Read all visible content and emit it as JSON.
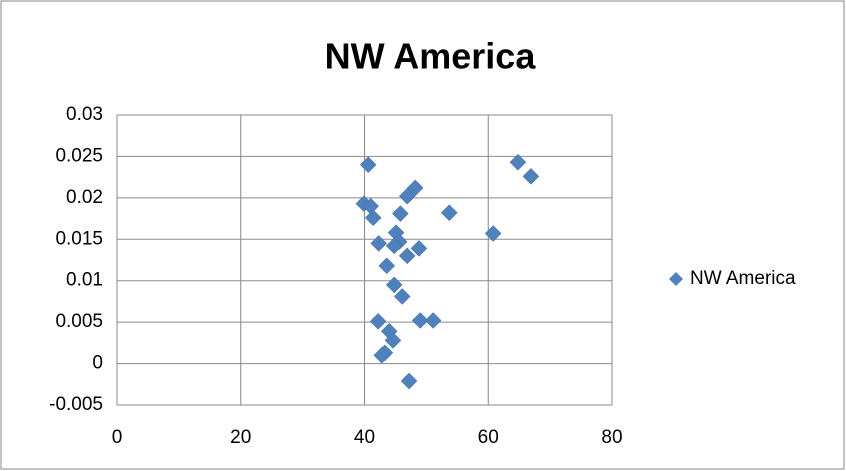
{
  "chart_data": {
    "type": "scatter",
    "title": "NW America",
    "series": [
      {
        "name": "NW America",
        "color": "#4f81bd",
        "x": [
          40.6,
          39.9,
          41.0,
          41.4,
          64.8,
          66.9,
          48.2,
          46.9,
          45.8,
          53.7,
          60.8,
          45.1,
          42.3,
          45.6,
          44.8,
          48.8,
          46.9,
          43.6,
          44.8,
          46.1,
          42.2,
          49.0,
          51.1,
          44.0,
          44.6,
          43.3,
          42.8,
          47.2
        ],
        "values": [
          0.024,
          0.0193,
          0.019,
          0.0176,
          0.0243,
          0.0226,
          0.0212,
          0.0202,
          0.0181,
          0.0182,
          0.0157,
          0.0158,
          0.0145,
          0.0147,
          0.0142,
          0.0139,
          0.013,
          0.0118,
          0.0095,
          0.0081,
          0.0051,
          0.0052,
          0.0052,
          0.0039,
          0.0028,
          0.0013,
          0.001,
          -0.0021
        ]
      }
    ],
    "xlim": [
      0,
      80
    ],
    "xticks": [
      0,
      20,
      40,
      60,
      80
    ],
    "ylim": [
      -0.005,
      0.03
    ],
    "yticks": [
      -0.005,
      0,
      0.005,
      0.01,
      0.015,
      0.02,
      0.025,
      0.03
    ],
    "grid": true,
    "legend": "right"
  }
}
